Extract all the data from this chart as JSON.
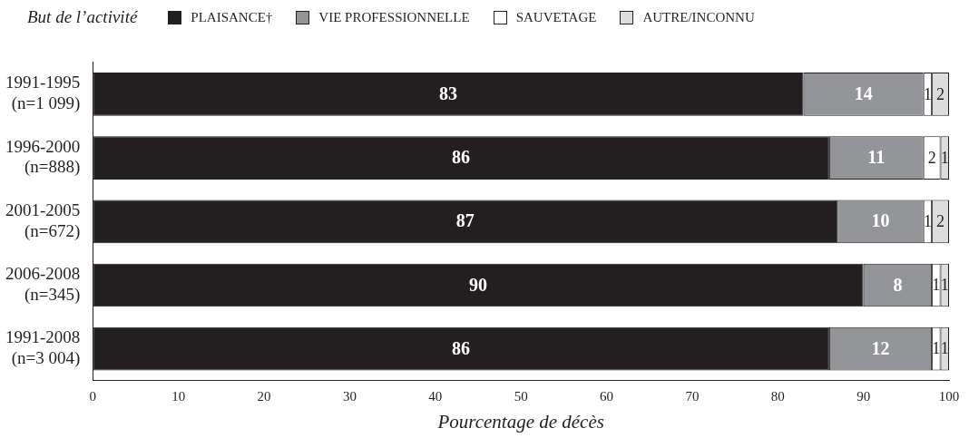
{
  "chart_data": {
    "type": "bar",
    "orientation": "horizontal",
    "stacked": true,
    "xlabel": "Pourcentage de décès",
    "legend_title": "But de l’activité",
    "legend": "top",
    "categories": [
      "1991-1995\n(n=1 099)",
      "1996-2000\n(n=888)",
      "2001-2005\n(n=672)",
      "2006-2008\n(n=345)",
      "1991-2008\n(n=3 004)"
    ],
    "series": [
      {
        "name": "PLAISANCE†",
        "color": "#231f20",
        "values": [
          83,
          86,
          87,
          90,
          86
        ]
      },
      {
        "name": "VIE PROFESSIONNELLE",
        "color": "#939598",
        "values": [
          14,
          11,
          10,
          8,
          12
        ]
      },
      {
        "name": "SAUVETAGE",
        "color": "#ffffff",
        "values": [
          1,
          2,
          1,
          1,
          1
        ]
      },
      {
        "name": "AUTRE/INCONNU",
        "color": "#dcddde",
        "values": [
          2,
          1,
          2,
          1,
          1
        ]
      }
    ],
    "xlim": [
      0,
      100
    ],
    "xticks": [
      0,
      10,
      20,
      30,
      40,
      50,
      60,
      70,
      80,
      90,
      100
    ],
    "grid": false,
    "data_labels": true
  }
}
